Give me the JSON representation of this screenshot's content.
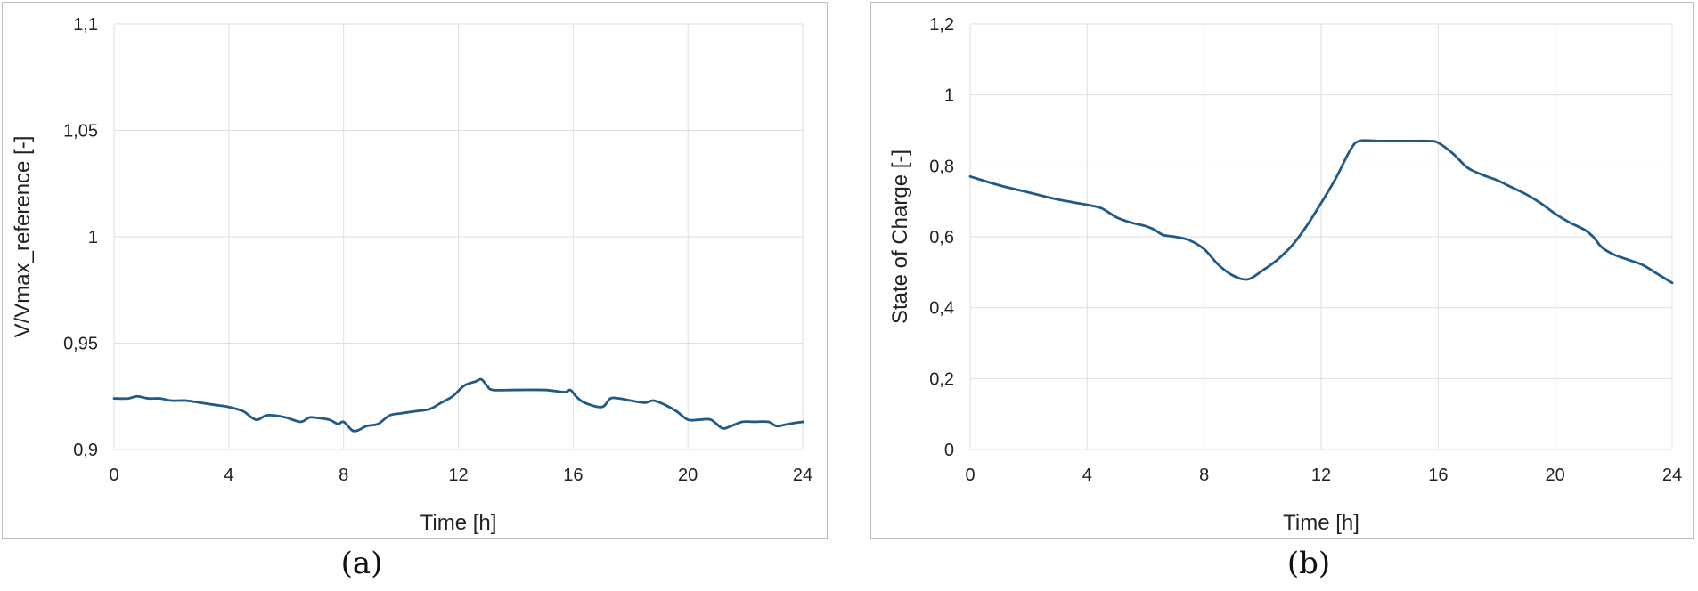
{
  "captions": {
    "a": "(a)",
    "b": "(b)"
  },
  "colors": {
    "series": "#1f5a88",
    "grid": "#dedede",
    "frame": "#bdbdbd"
  },
  "chart_data": [
    {
      "type": "line",
      "title": "",
      "xlabel": "Time [h]",
      "ylabel": "V/Vmax_reference [-]",
      "xlim": [
        0,
        24
      ],
      "ylim": [
        0.9,
        1.1
      ],
      "xticks": [
        0,
        4,
        8,
        12,
        16,
        20,
        24
      ],
      "xtick_labels": [
        "0",
        "4",
        "8",
        "12",
        "16",
        "20",
        "24"
      ],
      "yticks": [
        0.9,
        0.95,
        1.0,
        1.05,
        1.1
      ],
      "ytick_labels": [
        "0,9",
        "0,95",
        "1",
        "1,05",
        "1,1"
      ],
      "grid": true,
      "legend": "none",
      "series": [
        {
          "x": [
            0,
            0.5,
            0.8,
            1.2,
            1.6,
            2.0,
            2.5,
            3.0,
            3.5,
            4.0,
            4.5,
            4.8,
            5.0,
            5.3,
            5.6,
            6.0,
            6.5,
            6.8,
            7.0,
            7.5,
            7.8,
            8.0,
            8.3,
            8.5,
            8.8,
            9.2,
            9.6,
            10.0,
            10.5,
            11.0,
            11.4,
            11.8,
            12.2,
            12.6,
            12.8,
            13.0,
            13.2,
            14.0,
            15.0,
            15.7,
            15.9,
            16.1,
            16.4,
            17.0,
            17.3,
            17.6,
            18.0,
            18.5,
            18.8,
            19.2,
            19.6,
            20.0,
            20.4,
            20.8,
            21.2,
            21.5,
            21.9,
            22.3,
            22.8,
            23.1,
            23.5,
            24.0
          ],
          "y": [
            0.924,
            0.924,
            0.925,
            0.924,
            0.924,
            0.923,
            0.923,
            0.922,
            0.921,
            0.92,
            0.918,
            0.915,
            0.914,
            0.916,
            0.916,
            0.915,
            0.913,
            0.915,
            0.915,
            0.914,
            0.912,
            0.913,
            0.909,
            0.909,
            0.911,
            0.912,
            0.916,
            0.917,
            0.918,
            0.919,
            0.922,
            0.925,
            0.93,
            0.932,
            0.933,
            0.93,
            0.928,
            0.928,
            0.928,
            0.927,
            0.928,
            0.925,
            0.922,
            0.92,
            0.924,
            0.924,
            0.923,
            0.922,
            0.923,
            0.921,
            0.918,
            0.914,
            0.914,
            0.914,
            0.91,
            0.911,
            0.913,
            0.913,
            0.913,
            0.911,
            0.912,
            0.913
          ]
        }
      ]
    },
    {
      "type": "line",
      "title": "",
      "xlabel": "Time [h]",
      "ylabel": "State of Charge [-]",
      "xlim": [
        0,
        24
      ],
      "ylim": [
        0,
        1.2
      ],
      "xticks": [
        0,
        4,
        8,
        12,
        16,
        20,
        24
      ],
      "xtick_labels": [
        "0",
        "4",
        "8",
        "12",
        "16",
        "20",
        "24"
      ],
      "yticks": [
        0,
        0.2,
        0.4,
        0.6,
        0.8,
        1.0,
        1.2
      ],
      "ytick_labels": [
        "0",
        "0,2",
        "0,4",
        "0,6",
        "0,8",
        "1",
        "1,2"
      ],
      "grid": true,
      "legend": "none",
      "series": [
        {
          "x": [
            0,
            1,
            2,
            3,
            4,
            4.5,
            5.0,
            5.5,
            6.0,
            6.3,
            6.6,
            7.0,
            7.5,
            8.0,
            8.5,
            9.0,
            9.5,
            10.0,
            10.5,
            11.0,
            11.5,
            12.0,
            12.5,
            13.0,
            13.3,
            14.0,
            15.0,
            15.7,
            16.0,
            16.5,
            17.0,
            17.5,
            18.0,
            18.5,
            19.0,
            19.5,
            20.0,
            20.5,
            21.0,
            21.3,
            21.6,
            22.0,
            22.5,
            23.0,
            23.5,
            24.0
          ],
          "y": [
            0.77,
            0.745,
            0.725,
            0.705,
            0.69,
            0.68,
            0.655,
            0.64,
            0.63,
            0.62,
            0.605,
            0.6,
            0.59,
            0.565,
            0.52,
            0.49,
            0.48,
            0.505,
            0.535,
            0.575,
            0.63,
            0.695,
            0.765,
            0.845,
            0.87,
            0.87,
            0.87,
            0.87,
            0.865,
            0.835,
            0.795,
            0.775,
            0.76,
            0.74,
            0.72,
            0.695,
            0.665,
            0.64,
            0.62,
            0.6,
            0.57,
            0.55,
            0.535,
            0.52,
            0.495,
            0.47
          ]
        }
      ]
    }
  ]
}
